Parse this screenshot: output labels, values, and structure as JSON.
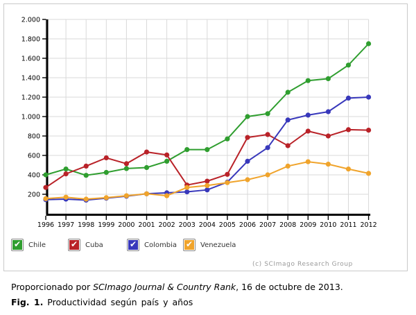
{
  "figure": {
    "copyright": "(c) SCImago Research Group"
  },
  "legend": [
    {
      "label": "Chile",
      "color": "#2f9e2f"
    },
    {
      "label": "Cuba",
      "color": "#b92228"
    },
    {
      "label": "Colombia",
      "color": "#3838bb"
    },
    {
      "label": "Venezuela",
      "color": "#f0a42c"
    }
  ],
  "caption": {
    "line1_prefix": "Proporcionado por ",
    "line1_italic": "SCImago Journal & Country Rank",
    "line1_suffix": ", 16 de octubre de 2013.",
    "line2_bold": "Fig. 1.",
    "line2_text": " Productividad según país y años"
  },
  "chart_data": {
    "type": "line",
    "x": [
      1996,
      1997,
      1998,
      1999,
      2000,
      2001,
      2002,
      2003,
      2004,
      2005,
      2006,
      2007,
      2008,
      2009,
      2010,
      2011,
      2012
    ],
    "series": [
      {
        "name": "Chile",
        "color": "#2f9e2f",
        "values": [
          400,
          460,
          395,
          425,
          465,
          475,
          540,
          660,
          660,
          770,
          1000,
          1030,
          1250,
          1370,
          1390,
          1530,
          1750
        ]
      },
      {
        "name": "Cuba",
        "color": "#b92228",
        "values": [
          270,
          410,
          490,
          575,
          515,
          635,
          605,
          295,
          335,
          405,
          785,
          815,
          700,
          850,
          800,
          865,
          860
        ]
      },
      {
        "name": "Colombia",
        "color": "#3838bb",
        "values": [
          145,
          150,
          140,
          160,
          180,
          205,
          215,
          225,
          245,
          325,
          540,
          680,
          965,
          1015,
          1050,
          1190,
          1200
        ]
      },
      {
        "name": "Venezuela",
        "color": "#f0a42c",
        "values": [
          155,
          170,
          150,
          165,
          185,
          205,
          185,
          270,
          290,
          320,
          350,
          400,
          490,
          535,
          510,
          460,
          415
        ]
      }
    ],
    "ylim": [
      0,
      2000
    ],
    "ytick_step": 200,
    "ytick_labels": [
      "200",
      "400",
      "600",
      "800",
      "1.000",
      "1.200",
      "1.400",
      "1.600",
      "1.800",
      "2.000"
    ],
    "xlabel": "",
    "ylabel": "",
    "grid": true,
    "legend_position": "bottom"
  }
}
